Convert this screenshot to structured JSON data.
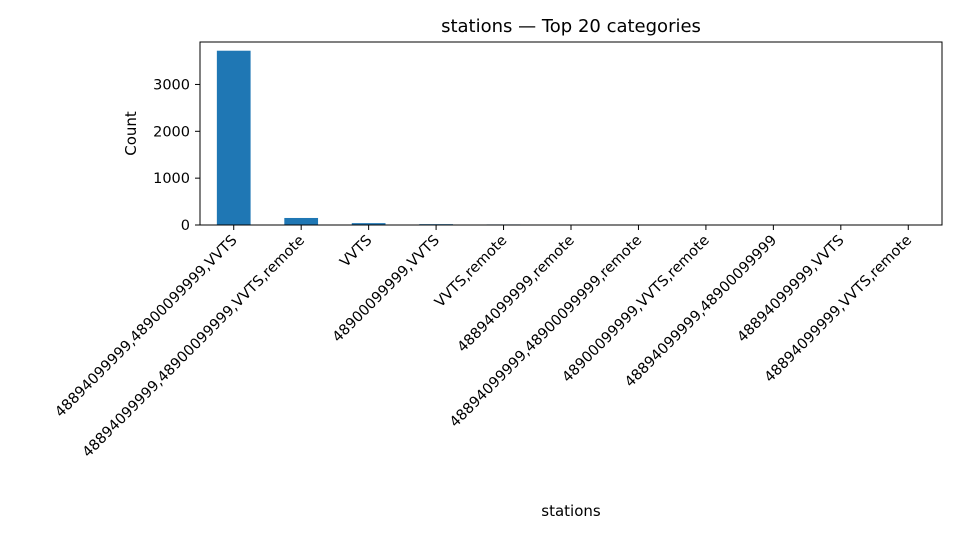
{
  "chart_data": {
    "type": "bar",
    "title": "stations — Top 20 categories",
    "xlabel": "stations",
    "ylabel": "Count",
    "categories": [
      "48894099999,48900099999,VVTS",
      "48894099999,48900099999,VVTS,remote",
      "VVTS",
      "48900099999,VVTS",
      "VVTS,remote",
      "48894099999,remote",
      "48894099999,48900099999,remote",
      "48900099999,VVTS,remote",
      "48894099999,48900099999",
      "48894099999,VVTS",
      "48894099999,VVTS,remote"
    ],
    "values": [
      3720,
      150,
      40,
      18,
      12,
      4,
      3,
      2,
      2,
      1,
      1
    ],
    "ylim": [
      0,
      3906
    ],
    "yticks": [
      0,
      1000,
      2000,
      3000
    ],
    "bar_color": "#1f77b4",
    "grid": false
  }
}
